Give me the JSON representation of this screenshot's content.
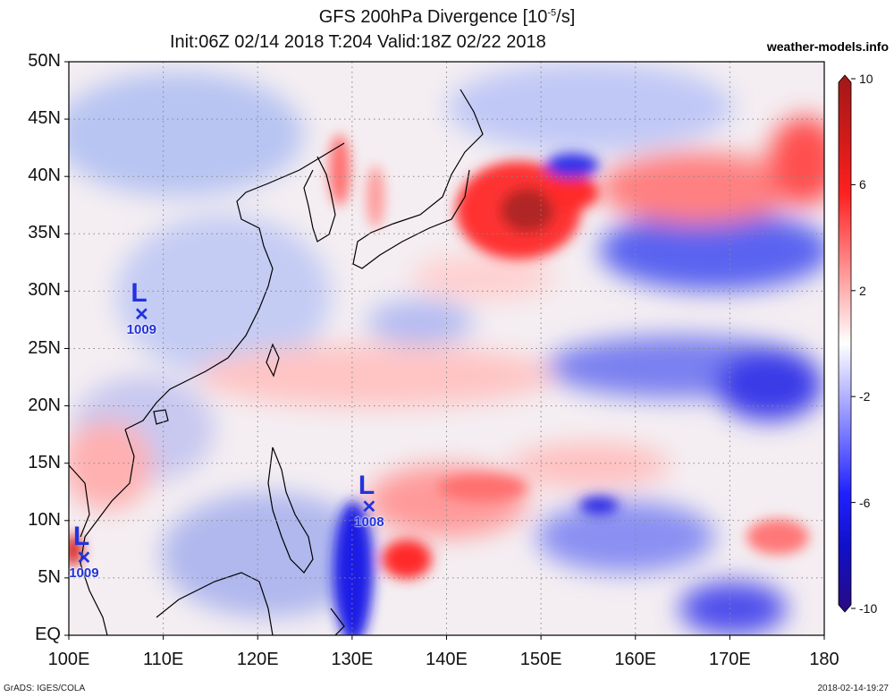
{
  "title": {
    "line1": "GFS 200hPa Divergence [10",
    "line1_sup": "-5",
    "line1_end": "/s]",
    "line2": "Init:06Z 02/14 2018 T:204 Valid:18Z 02/22 2018"
  },
  "site": "weather-models.info",
  "footer": {
    "left": "GrADS: IGES/COLA",
    "right": "2018-02-14-19:27"
  },
  "map": {
    "lon_range": [
      100,
      180
    ],
    "lat_range": [
      0,
      50
    ],
    "lat_labels": [
      "50N",
      "45N",
      "40N",
      "35N",
      "30N",
      "25N",
      "20N",
      "15N",
      "10N",
      "5N",
      "EQ"
    ],
    "lon_labels": [
      "100E",
      "110E",
      "120E",
      "130E",
      "140E",
      "150E",
      "160E",
      "170E",
      "180"
    ],
    "grid": "dotted"
  },
  "colorbar": {
    "labels": [
      "10",
      "6",
      "2",
      "-2",
      "-6",
      "-10"
    ],
    "colors": [
      "#a41b1b",
      "#e21c1c",
      "#ff4c4c",
      "#ff9090",
      "#ffc8c8",
      "#ffffff",
      "#c8c8ff",
      "#8a8aff",
      "#4a4aff",
      "#1010e0",
      "#2a0a8c"
    ]
  },
  "lows": [
    {
      "label": "L",
      "pressure": "1009",
      "lat": 28.0,
      "lon": 107.7
    },
    {
      "label": "L",
      "pressure": "1008",
      "lat": 11.2,
      "lon": 131.8
    },
    {
      "label": "L",
      "pressure": "1009",
      "lat": 6.8,
      "lon": 101.6
    }
  ]
}
